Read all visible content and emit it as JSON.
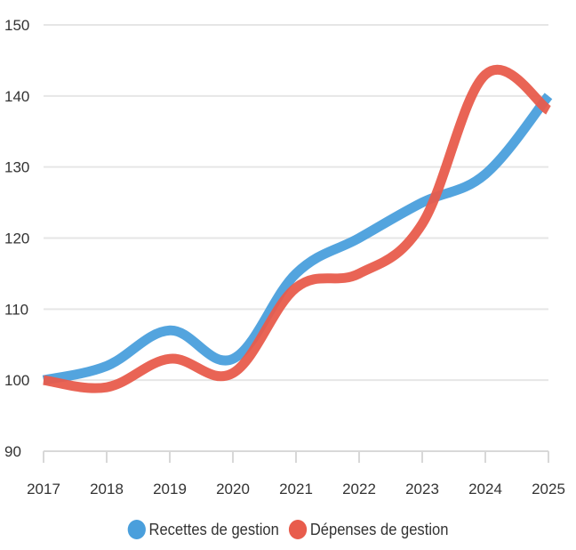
{
  "chart_data": {
    "type": "line",
    "title": "",
    "xlabel": "",
    "ylabel": "",
    "x": [
      "2017",
      "2018",
      "2019",
      "2020",
      "2021",
      "2022",
      "2023",
      "2024",
      "2025"
    ],
    "ylim": [
      90,
      150
    ],
    "yticks": [
      90,
      100,
      110,
      120,
      130,
      140,
      150
    ],
    "grid": true,
    "legend_position": "bottom-center",
    "series": [
      {
        "name": "Recettes de gestion",
        "color": "#4a9fdc",
        "values": [
          100,
          102,
          107,
          103,
          115,
          120,
          125,
          129,
          140
        ]
      },
      {
        "name": "Dépenses de gestion",
        "color": "#e85c4c",
        "values": [
          100,
          99,
          103,
          101,
          113,
          115,
          122,
          143,
          138
        ]
      }
    ]
  }
}
